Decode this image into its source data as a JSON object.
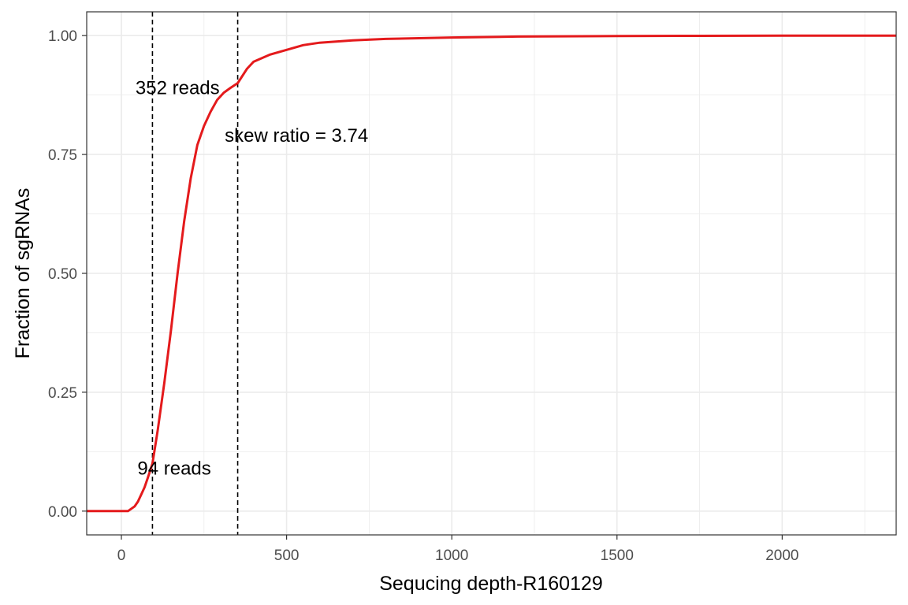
{
  "chart_data": {
    "type": "line",
    "xlabel": "Sequcing depth-R160129",
    "ylabel": "Fraction of sgRNAs",
    "xlim": [
      -105,
      2345
    ],
    "ylim": [
      -0.05,
      1.05
    ],
    "x_ticks": [
      0,
      500,
      1000,
      1500,
      2000
    ],
    "x_tick_labels": [
      "0",
      "500",
      "1000",
      "1500",
      "2000"
    ],
    "y_ticks": [
      0,
      0.25,
      0.5,
      0.75,
      1.0
    ],
    "y_tick_labels": [
      "0.00",
      "0.25",
      "0.50",
      "0.75",
      "1.00"
    ],
    "grid": true,
    "series": [
      {
        "color": "#e41a1c",
        "x": [
          -105,
          0,
          20,
          30,
          40,
          50,
          60,
          70,
          80,
          94,
          110,
          130,
          150,
          170,
          190,
          210,
          230,
          250,
          270,
          290,
          310,
          330,
          352,
          380,
          400,
          450,
          500,
          550,
          600,
          700,
          800,
          1000,
          1200,
          1500,
          1700,
          2000,
          2345
        ],
        "y": [
          0,
          0,
          0.0,
          0.005,
          0.01,
          0.02,
          0.035,
          0.05,
          0.07,
          0.1,
          0.17,
          0.27,
          0.38,
          0.5,
          0.61,
          0.7,
          0.77,
          0.81,
          0.84,
          0.865,
          0.88,
          0.89,
          0.9,
          0.93,
          0.945,
          0.96,
          0.97,
          0.98,
          0.985,
          0.99,
          0.993,
          0.996,
          0.998,
          0.999,
          0.9995,
          1.0,
          1.0
        ]
      }
    ],
    "vlines": [
      94,
      352
    ],
    "annotations": [
      {
        "text": "352 reads",
        "x": 170,
        "y": 0.89
      },
      {
        "text": "skew ratio = 3.74",
        "x": 530,
        "y": 0.79
      },
      {
        "text": "94 reads",
        "x": 160,
        "y": 0.09
      }
    ]
  }
}
